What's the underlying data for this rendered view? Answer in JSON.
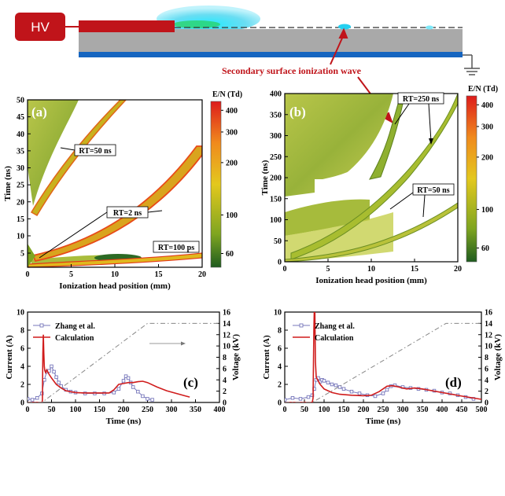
{
  "schematic": {
    "hv_label": "HV",
    "annotation": "Secondary surface ionization wave",
    "colors": {
      "hv": "#c0141a",
      "dielectric": "#a9a9a9",
      "ground_electrode": "#1565c0",
      "annotation": "#c0141a"
    }
  },
  "chart_data": [
    {
      "id": "a",
      "type": "heatmap",
      "panel_label": "(a)",
      "xlabel": "Ionization head position (mm)",
      "ylabel": "Time (ns)",
      "xlim": [
        0,
        20
      ],
      "ylim": [
        2,
        50
      ],
      "y_scale": "piecewise",
      "x_ticks": [
        0,
        5,
        10,
        15,
        20
      ],
      "y_ticks": [
        5,
        10,
        15,
        20,
        25,
        30,
        35,
        40,
        45,
        50
      ],
      "colorbar": {
        "title": "E/N (Td)",
        "ticks": [
          60,
          100,
          200,
          300,
          400
        ],
        "range": [
          50,
          450
        ],
        "colors": [
          "#1f5c1f",
          "#7fa520",
          "#e3c81e",
          "#f08a1d",
          "#dd1c1c"
        ]
      },
      "annotations": [
        "RT=50 ns",
        "RT=2 ns",
        "RT=100 ps"
      ],
      "series": [
        {
          "name": "RT=50 ns",
          "x": [
            0.6,
            2,
            4,
            6,
            8,
            10,
            13
          ],
          "y": [
            10,
            19,
            26,
            32,
            38,
            44,
            50
          ]
        },
        {
          "name": "RT=2 ns",
          "x": [
            0.5,
            3,
            6,
            9,
            12,
            15,
            18,
            20
          ],
          "y": [
            3.8,
            5,
            6.5,
            8.5,
            11.5,
            17,
            27,
            37
          ]
        },
        {
          "name": "RT=100 ps",
          "x": [
            0,
            4,
            8,
            12,
            16,
            20
          ],
          "y": [
            2.1,
            2.5,
            2.8,
            3.1,
            3.4,
            3.7
          ]
        }
      ]
    },
    {
      "id": "b",
      "type": "heatmap",
      "panel_label": "(b)",
      "xlabel": "Ionization head position (mm)",
      "ylabel": "Time (ns)",
      "xlim": [
        0,
        20
      ],
      "ylim": [
        0,
        400
      ],
      "x_ticks": [
        0,
        5,
        10,
        15,
        20
      ],
      "y_ticks": [
        0,
        50,
        100,
        150,
        200,
        250,
        300,
        350,
        400
      ],
      "colorbar": {
        "title": "E/N (Td)",
        "ticks": [
          60,
          100,
          200,
          300,
          400
        ],
        "range": [
          50,
          450
        ],
        "colors": [
          "#1f5c1f",
          "#7fa520",
          "#e3c81e",
          "#f08a1d",
          "#dd1c1c"
        ]
      },
      "annotations": [
        "RT=250 ns",
        "RT=50 ns"
      ],
      "series": [
        {
          "name": "RT=250 ns",
          "x": [
            0,
            4,
            8,
            12,
            16,
            20
          ],
          "y": [
            40,
            75,
            130,
            190,
            260,
            400
          ]
        },
        {
          "name": "RT=50 ns",
          "x": [
            0,
            5,
            10,
            15,
            20
          ],
          "y": [
            5,
            20,
            45,
            80,
            145
          ]
        }
      ]
    },
    {
      "id": "c",
      "type": "line",
      "panel_label": "(c)",
      "xlabel": "Time (ns)",
      "ylabel": "Current (A)",
      "y2label": "Voltage (kV)",
      "xlim": [
        0,
        400
      ],
      "ylim": [
        0,
        10
      ],
      "y2lim": [
        0,
        16
      ],
      "x_ticks": [
        0,
        50,
        100,
        150,
        200,
        250,
        300,
        350,
        400
      ],
      "y_ticks": [
        0,
        2,
        4,
        6,
        8,
        10
      ],
      "y2_ticks": [
        0,
        2,
        4,
        6,
        8,
        10,
        12,
        14,
        16
      ],
      "legend_position": "top-left",
      "series": [
        {
          "name": "Zhang et al.",
          "style": "line-markers",
          "color": "#7777bb",
          "x": [
            0,
            10,
            20,
            30,
            35,
            40,
            45,
            50,
            55,
            60,
            65,
            70,
            80,
            90,
            100,
            120,
            140,
            160,
            180,
            190,
            200,
            205,
            210,
            215,
            220,
            230,
            240,
            250,
            260
          ],
          "y": [
            0.4,
            0.3,
            0.5,
            1.0,
            2.5,
            3.4,
            3.5,
            4.0,
            3.4,
            2.8,
            2.2,
            1.8,
            1.4,
            1.2,
            1.1,
            1.0,
            1.0,
            1.0,
            1.1,
            1.5,
            2.4,
            2.9,
            2.7,
            2.2,
            1.7,
            1.2,
            0.7,
            0.4,
            0.3
          ]
        },
        {
          "name": "Calculation",
          "style": "line",
          "color": "#d01c1c",
          "x": [
            0,
            30,
            31,
            32,
            33,
            34,
            35,
            36,
            38,
            40,
            45,
            50,
            60,
            70,
            80,
            100,
            120,
            150,
            170,
            180,
            190,
            200,
            210,
            220,
            230,
            240,
            250,
            270,
            290,
            310,
            330,
            338
          ],
          "y": [
            0,
            0,
            0.2,
            5.5,
            7.5,
            5.5,
            4.0,
            3.5,
            3.3,
            3.6,
            3.1,
            2.7,
            2.0,
            1.6,
            1.3,
            1.1,
            1.05,
            1.05,
            1.05,
            1.4,
            2.0,
            2.1,
            2.2,
            2.2,
            2.3,
            2.35,
            2.2,
            1.7,
            1.3,
            1.0,
            0.7,
            0.6
          ]
        },
        {
          "name": "Voltage",
          "style": "dash-dot",
          "axis": "y2",
          "color": "#888888",
          "x": [
            0,
            30,
            250,
            400
          ],
          "y": [
            0,
            0,
            14,
            14
          ]
        }
      ]
    },
    {
      "id": "d",
      "type": "line",
      "panel_label": "(d)",
      "xlabel": "Time (ns)",
      "ylabel": "Current (A)",
      "y2label": "Voltage (kV)",
      "xlim": [
        0,
        500
      ],
      "ylim": [
        0,
        10
      ],
      "y2lim": [
        0,
        16
      ],
      "x_ticks": [
        0,
        50,
        100,
        150,
        200,
        250,
        300,
        350,
        400,
        450,
        500
      ],
      "y_ticks": [
        0,
        2,
        4,
        6,
        8,
        10
      ],
      "y2_ticks": [
        0,
        2,
        4,
        6,
        8,
        10,
        12,
        14,
        16
      ],
      "legend_position": "top-left",
      "series": [
        {
          "name": "Zhang et al.",
          "style": "line-markers",
          "color": "#7777bb",
          "x": [
            0,
            20,
            40,
            60,
            70,
            75,
            80,
            85,
            90,
            95,
            100,
            110,
            120,
            130,
            140,
            150,
            170,
            190,
            210,
            230,
            250,
            260,
            270,
            280,
            300,
            320,
            340,
            360,
            380,
            400,
            420,
            440,
            460,
            480
          ],
          "y": [
            0.3,
            0.5,
            0.4,
            0.6,
            0.8,
            1.5,
            2.5,
            2.7,
            2.3,
            2.5,
            2.4,
            2.2,
            2.0,
            1.9,
            1.7,
            1.5,
            1.2,
            1.0,
            0.8,
            0.7,
            1.0,
            1.4,
            1.8,
            1.9,
            1.7,
            1.6,
            1.5,
            1.4,
            1.3,
            1.1,
            1.0,
            0.8,
            0.6,
            0.4
          ]
        },
        {
          "name": "Calculation",
          "style": "line",
          "color": "#d01c1c",
          "x": [
            0,
            70,
            72,
            74,
            76,
            78,
            80,
            85,
            90,
            100,
            120,
            140,
            170,
            200,
            220,
            240,
            260,
            275,
            290,
            310,
            330,
            350,
            400,
            450,
            500
          ],
          "y": [
            0,
            0,
            0.5,
            8.0,
            12.1,
            4.5,
            2.8,
            2.4,
            2.0,
            1.5,
            1.1,
            0.9,
            0.8,
            0.75,
            0.8,
            1.2,
            1.8,
            1.85,
            1.7,
            1.5,
            1.6,
            1.5,
            1.1,
            0.7,
            0.35
          ]
        },
        {
          "name": "Voltage",
          "style": "dash-dot",
          "axis": "y2",
          "color": "#888888",
          "x": [
            0,
            70,
            410,
            500
          ],
          "y": [
            0,
            0,
            14,
            14
          ]
        }
      ]
    }
  ]
}
